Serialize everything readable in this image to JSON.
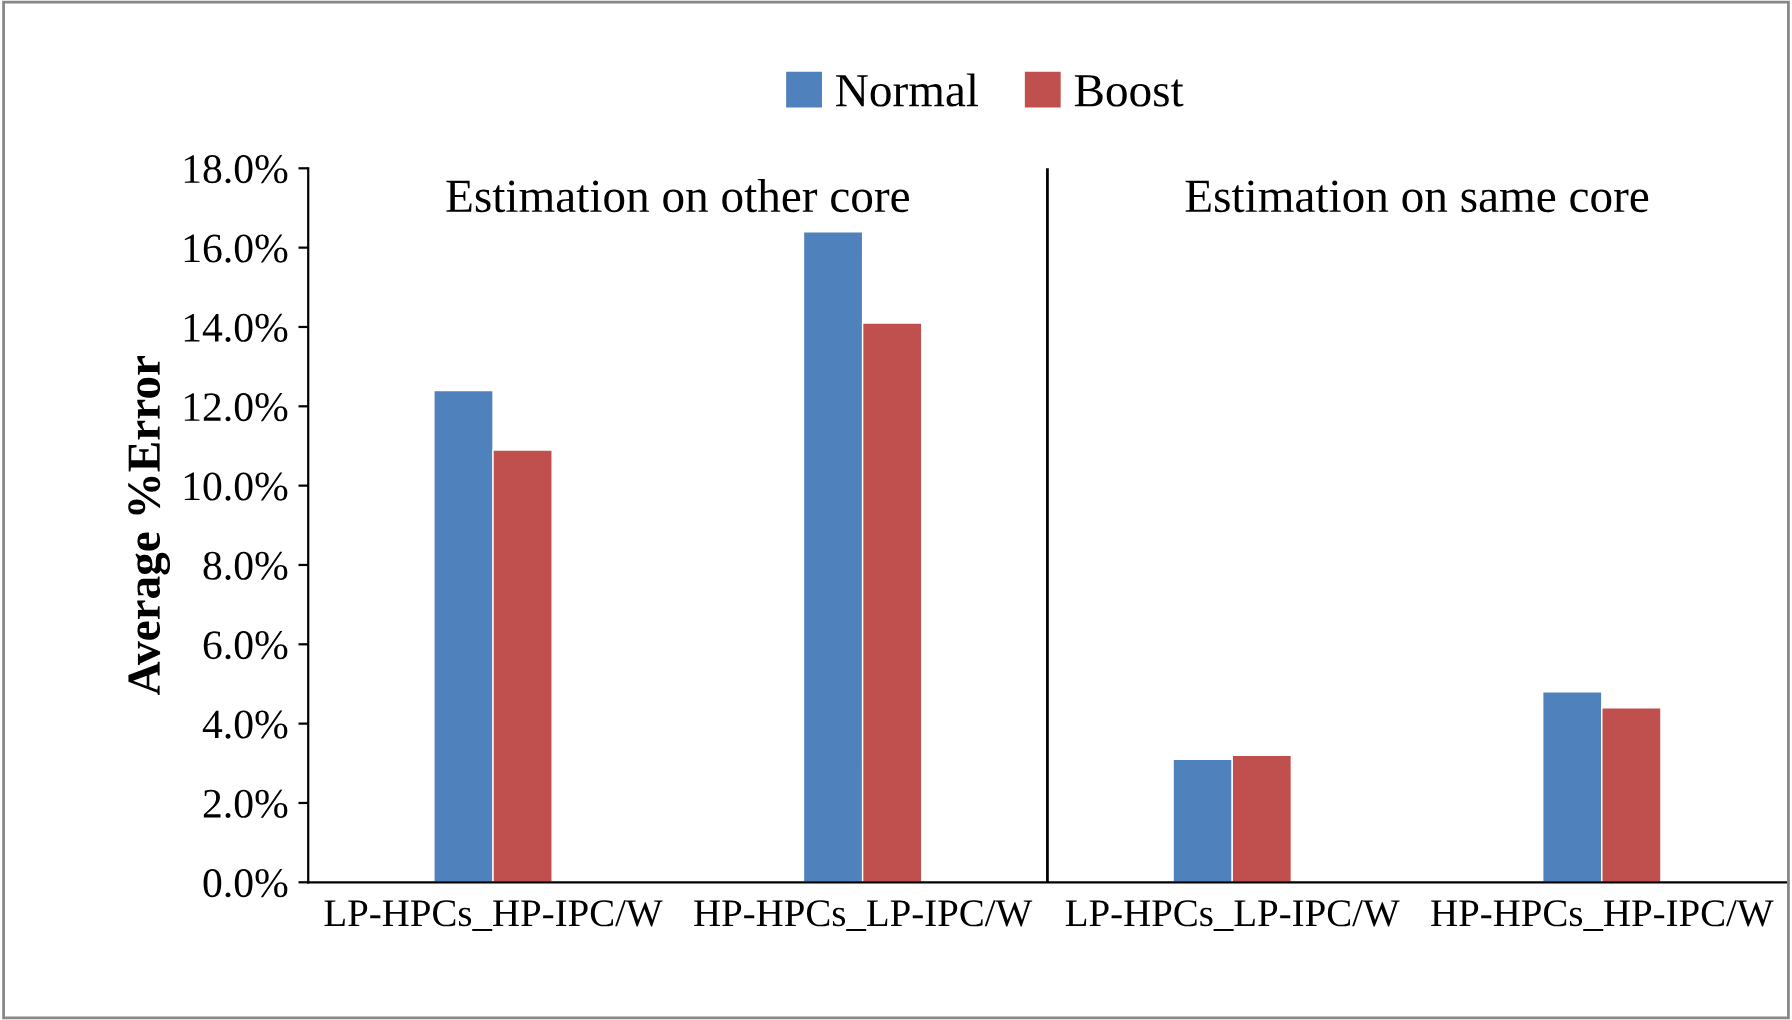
{
  "chart_data": {
    "type": "bar",
    "ylabel": "Average %Error",
    "categories": [
      "LP-HPCs_HP-IPC/W",
      "HP-HPCs_LP-IPC/W",
      "LP-HPCs_LP-IPC/W",
      "HP-HPCs_HP-IPC/W"
    ],
    "series": [
      {
        "name": "Normal",
        "color": "#4f81bd",
        "values": [
          12.4,
          16.4,
          3.1,
          4.8
        ]
      },
      {
        "name": "Boost",
        "color": "#c0504d",
        "values": [
          10.9,
          14.1,
          3.2,
          4.4
        ]
      }
    ],
    "ylim": [
      0,
      18
    ],
    "yticks": [
      {
        "value": 0,
        "label": "0.0%"
      },
      {
        "value": 2,
        "label": "2.0%"
      },
      {
        "value": 4,
        "label": "4.0%"
      },
      {
        "value": 6,
        "label": "6.0%"
      },
      {
        "value": 8,
        "label": "8.0%"
      },
      {
        "value": 10,
        "label": "10.0%"
      },
      {
        "value": 12,
        "label": "12.0%"
      },
      {
        "value": 14,
        "label": "14.0%"
      },
      {
        "value": 16,
        "label": "16.0%"
      },
      {
        "value": 18,
        "label": "18.0%"
      }
    ],
    "annotations": [
      "Estimation on other core",
      "Estimation on same core"
    ],
    "grid": false,
    "legend": "top"
  }
}
